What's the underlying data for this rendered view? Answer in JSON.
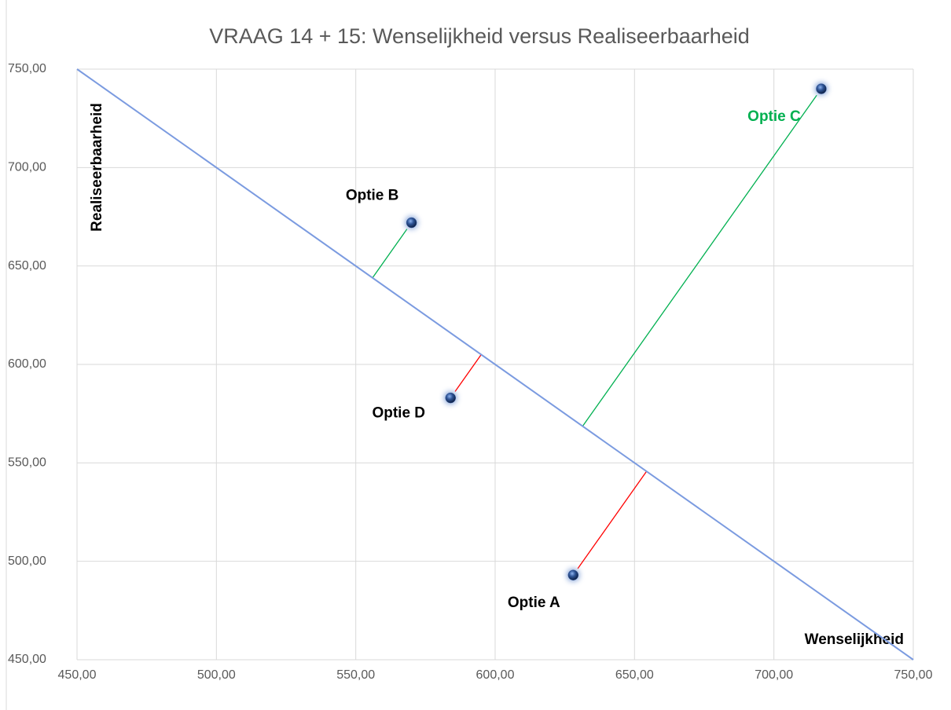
{
  "chart_data": {
    "type": "scatter",
    "title": "VRAAG 14 + 15: Wenselijkheid versus Realiseerbaarheid",
    "x_label": "Wenselijkheid",
    "y_label": "Realiseerbaarheid",
    "xlim": [
      450,
      750
    ],
    "ylim": [
      450,
      750
    ],
    "xticks": [
      {
        "value": 450,
        "label": "450,00"
      },
      {
        "value": 500,
        "label": "500,00"
      },
      {
        "value": 550,
        "label": "550,00"
      },
      {
        "value": 600,
        "label": "600,00"
      },
      {
        "value": 650,
        "label": "650,00"
      },
      {
        "value": 700,
        "label": "700,00"
      },
      {
        "value": 750,
        "label": "750,00"
      }
    ],
    "yticks": [
      {
        "value": 450,
        "label": "450,00"
      },
      {
        "value": 500,
        "label": "500,00"
      },
      {
        "value": 550,
        "label": "550,00"
      },
      {
        "value": 600,
        "label": "600,00"
      },
      {
        "value": 650,
        "label": "650,00"
      },
      {
        "value": 700,
        "label": "700,00"
      },
      {
        "value": 750,
        "label": "750,00"
      }
    ],
    "grid": true,
    "points": {
      "color": "#2f5597",
      "labels": [
        "Optie A",
        "Optie B",
        "Optie C",
        "Optie D"
      ],
      "label_colors": [
        "#000000",
        "#000000",
        "#00b050",
        "#000000"
      ],
      "connector_colors": [
        "#ff0000",
        "#00b050",
        "#00b050",
        "#ff0000"
      ],
      "x": [
        628,
        570,
        717,
        584
      ],
      "values": [
        493,
        672,
        740,
        583
      ]
    },
    "diagonal": {
      "color": "#7b9be0",
      "x": [
        450,
        750
      ],
      "values": [
        750,
        450
      ]
    }
  }
}
